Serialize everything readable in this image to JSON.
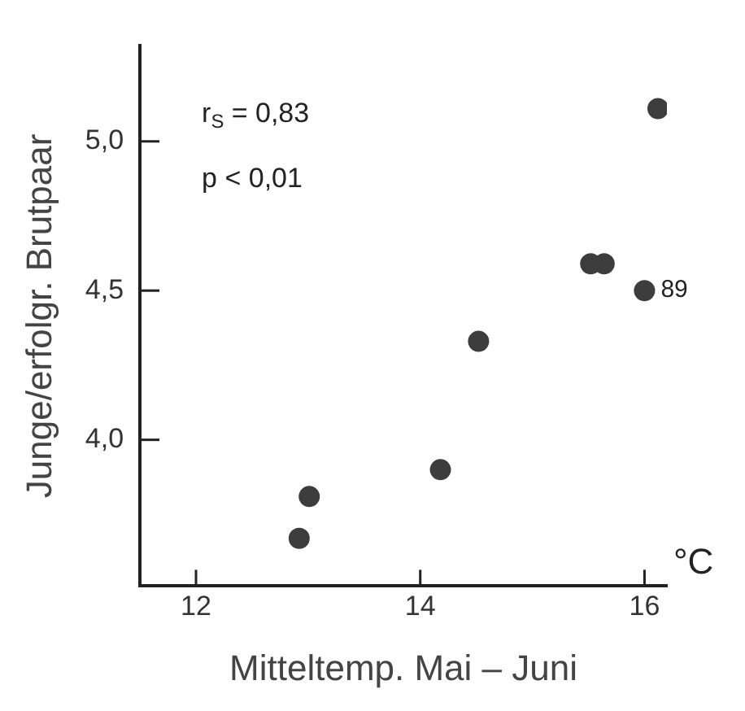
{
  "chart_data": {
    "type": "scatter",
    "xlabel": "Mitteltemp. Mai – Juni",
    "ylabel": "Junge/erfolgr. Brutpaar",
    "x": [
      12.92,
      13.01,
      14.18,
      14.52,
      15.52,
      15.64,
      16.0,
      16.12
    ],
    "values": [
      3.67,
      3.81,
      3.9,
      4.33,
      4.59,
      4.59,
      4.5,
      5.11
    ],
    "color": "#3d3d3d",
    "marker": "circle",
    "xlim": [
      11.5,
      16.2
    ],
    "xticks": [
      12,
      14,
      16
    ],
    "ylim": [
      3.51,
      5.32
    ],
    "yticks": [
      {
        "value": 4,
        "label": "4,0"
      },
      {
        "value": 4.5,
        "label": "4,5"
      },
      {
        "value": 5,
        "label": "5,0"
      }
    ],
    "grid": false,
    "legend": false,
    "annotations": [
      "r$_{S}$ = 0,83",
      "p < 0,01",
      "°C",
      {
        "text": "89",
        "x": 16.0,
        "y": 4.5
      }
    ]
  }
}
